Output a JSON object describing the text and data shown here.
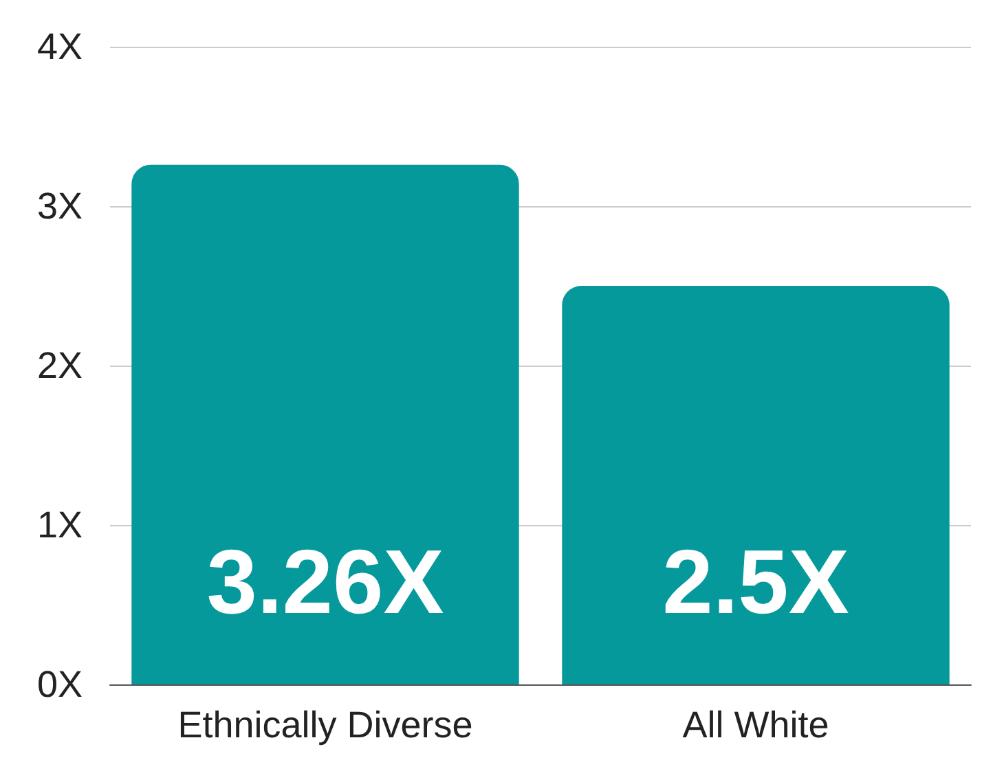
{
  "chart_data": {
    "type": "bar",
    "categories": [
      "Ethnically Diverse",
      "All White"
    ],
    "values": [
      3.26,
      2.5
    ],
    "value_labels": [
      "3.26X",
      "2.5X"
    ],
    "color": "#06999c",
    "ylim": [
      0,
      4
    ],
    "yticks": [
      {
        "value": 0,
        "label": "0X"
      },
      {
        "value": 1,
        "label": "1X"
      },
      {
        "value": 2,
        "label": "2X"
      },
      {
        "value": 3,
        "label": "3X"
      },
      {
        "value": 4,
        "label": "4X"
      }
    ],
    "grid": true
  }
}
